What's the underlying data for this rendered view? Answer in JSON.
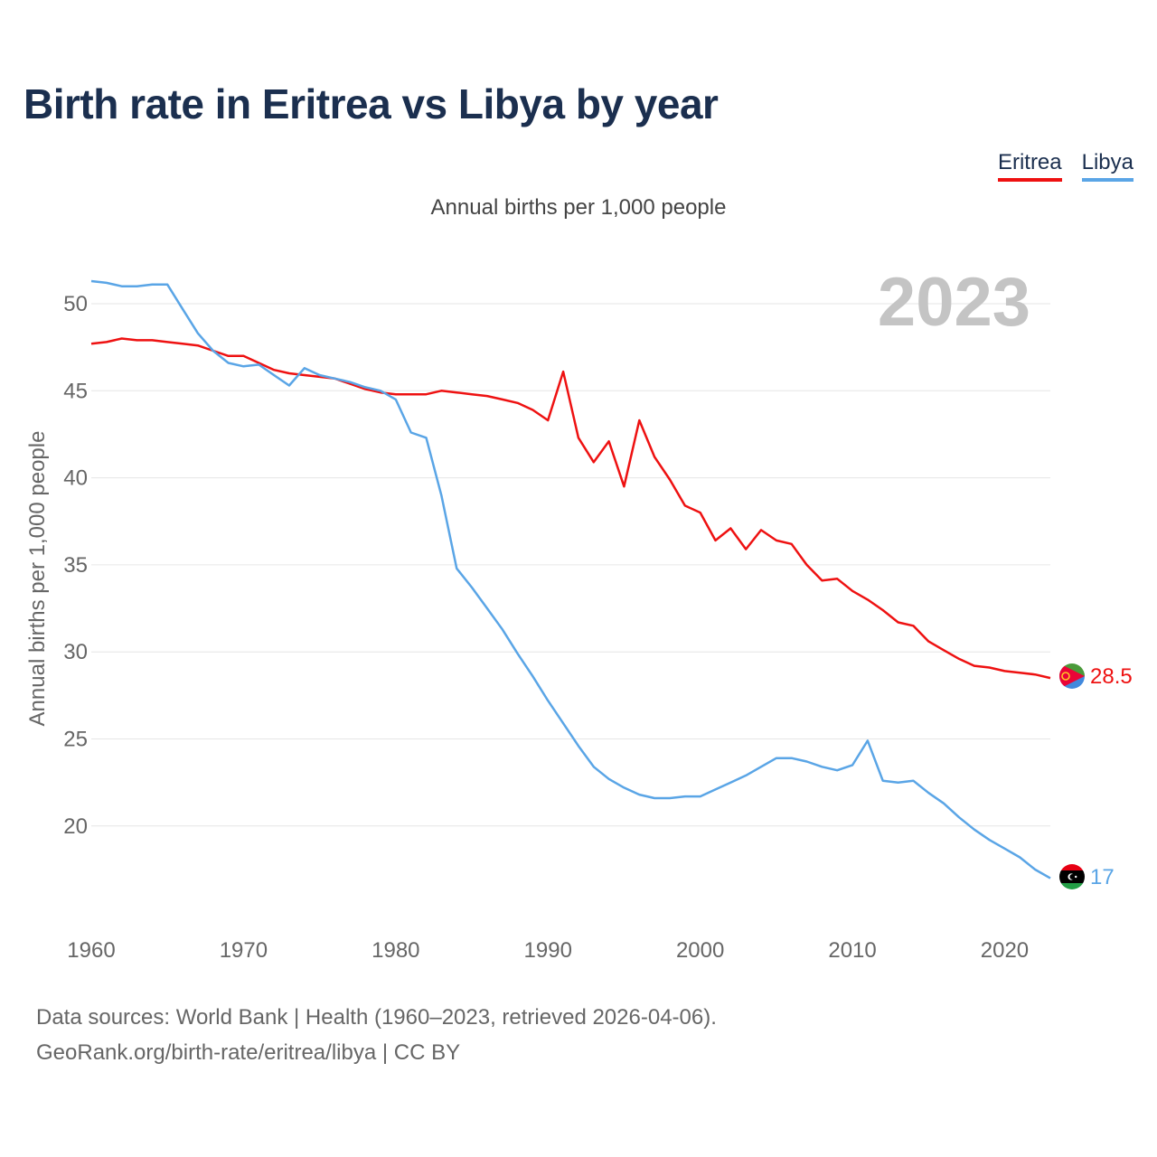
{
  "title": "Birth rate in Eritrea vs Libya by year",
  "legend": [
    {
      "label": "Eritrea",
      "color": "#ee1111"
    },
    {
      "label": "Libya",
      "color": "#5aa5e6"
    }
  ],
  "source_line1": "Data sources: World Bank | Health (1960–2023, retrieved 2026-04-06).",
  "source_line2": "GeoRank.org/birth-rate/eritrea/libya | CC BY",
  "chart_data": {
    "type": "line",
    "title": "Birth rate in Eritrea vs Libya by year",
    "subtitle": "Annual births per 1,000 people",
    "ylabel": "Annual births per 1,000 people",
    "xlabel": "",
    "year_label": "2023",
    "xlim": [
      1960,
      2023
    ],
    "ylim": [
      15,
      52
    ],
    "x_ticks": [
      1960,
      1970,
      1980,
      1990,
      2000,
      2010,
      2020
    ],
    "y_ticks": [
      20,
      25,
      30,
      35,
      40,
      45,
      50
    ],
    "grid": true,
    "legend_position": "top-right",
    "x": [
      1960,
      1961,
      1962,
      1963,
      1964,
      1965,
      1966,
      1967,
      1968,
      1969,
      1970,
      1971,
      1972,
      1973,
      1974,
      1975,
      1976,
      1977,
      1978,
      1979,
      1980,
      1981,
      1982,
      1983,
      1984,
      1985,
      1986,
      1987,
      1988,
      1989,
      1990,
      1991,
      1992,
      1993,
      1994,
      1995,
      1996,
      1997,
      1998,
      1999,
      2000,
      2001,
      2002,
      2003,
      2004,
      2005,
      2006,
      2007,
      2008,
      2009,
      2010,
      2011,
      2012,
      2013,
      2014,
      2015,
      2016,
      2017,
      2018,
      2019,
      2020,
      2021,
      2022,
      2023
    ],
    "series": [
      {
        "name": "Eritrea",
        "color": "#ee1111",
        "end_label": "28.5",
        "values": [
          47.7,
          47.8,
          48.0,
          47.9,
          47.9,
          47.8,
          47.7,
          47.6,
          47.3,
          47.0,
          47.0,
          46.6,
          46.2,
          46.0,
          45.9,
          45.8,
          45.7,
          45.4,
          45.1,
          44.9,
          44.8,
          44.8,
          44.8,
          45.0,
          44.9,
          44.8,
          44.7,
          44.5,
          44.3,
          43.9,
          43.3,
          46.1,
          42.3,
          40.9,
          42.1,
          39.5,
          43.3,
          41.2,
          39.9,
          38.4,
          38.0,
          36.4,
          37.1,
          35.9,
          37.0,
          36.4,
          36.2,
          35.0,
          34.1,
          34.2,
          33.5,
          33.0,
          32.4,
          31.7,
          31.5,
          30.6,
          30.1,
          29.6,
          29.2,
          29.1,
          28.9,
          28.8,
          28.7,
          28.5
        ]
      },
      {
        "name": "Libya",
        "color": "#5aa5e6",
        "end_label": "17",
        "values": [
          51.3,
          51.2,
          51.0,
          51.0,
          51.1,
          51.1,
          49.7,
          48.3,
          47.3,
          46.6,
          46.4,
          46.5,
          45.9,
          45.3,
          46.3,
          45.9,
          45.7,
          45.5,
          45.2,
          45.0,
          44.5,
          42.6,
          42.3,
          39.0,
          34.8,
          33.7,
          32.5,
          31.3,
          29.9,
          28.6,
          27.2,
          25.9,
          24.6,
          23.4,
          22.7,
          22.2,
          21.8,
          21.6,
          21.6,
          21.7,
          21.7,
          22.1,
          22.5,
          22.9,
          23.4,
          23.9,
          23.9,
          23.7,
          23.4,
          23.2,
          23.5,
          24.9,
          22.6,
          22.5,
          22.6,
          21.9,
          21.3,
          20.5,
          19.8,
          19.2,
          18.7,
          18.2,
          17.5,
          17.0
        ]
      }
    ]
  }
}
